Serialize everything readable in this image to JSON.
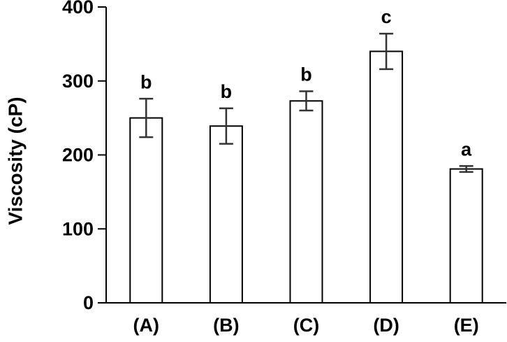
{
  "chart_data": {
    "type": "bar",
    "y_label": "Viscosity (cP)",
    "categories": [
      "(A)",
      "(B)",
      "(C)",
      "(D)",
      "(E)"
    ],
    "values": [
      250,
      239,
      273,
      340,
      181
    ],
    "errors": [
      26,
      24,
      13,
      24,
      4
    ],
    "significance": [
      "b",
      "b",
      "b",
      "c",
      "a"
    ],
    "color": "#ffffff",
    "ylim": [
      0,
      400
    ],
    "yticks": [
      0,
      100,
      200,
      300,
      400
    ],
    "grid": false
  }
}
